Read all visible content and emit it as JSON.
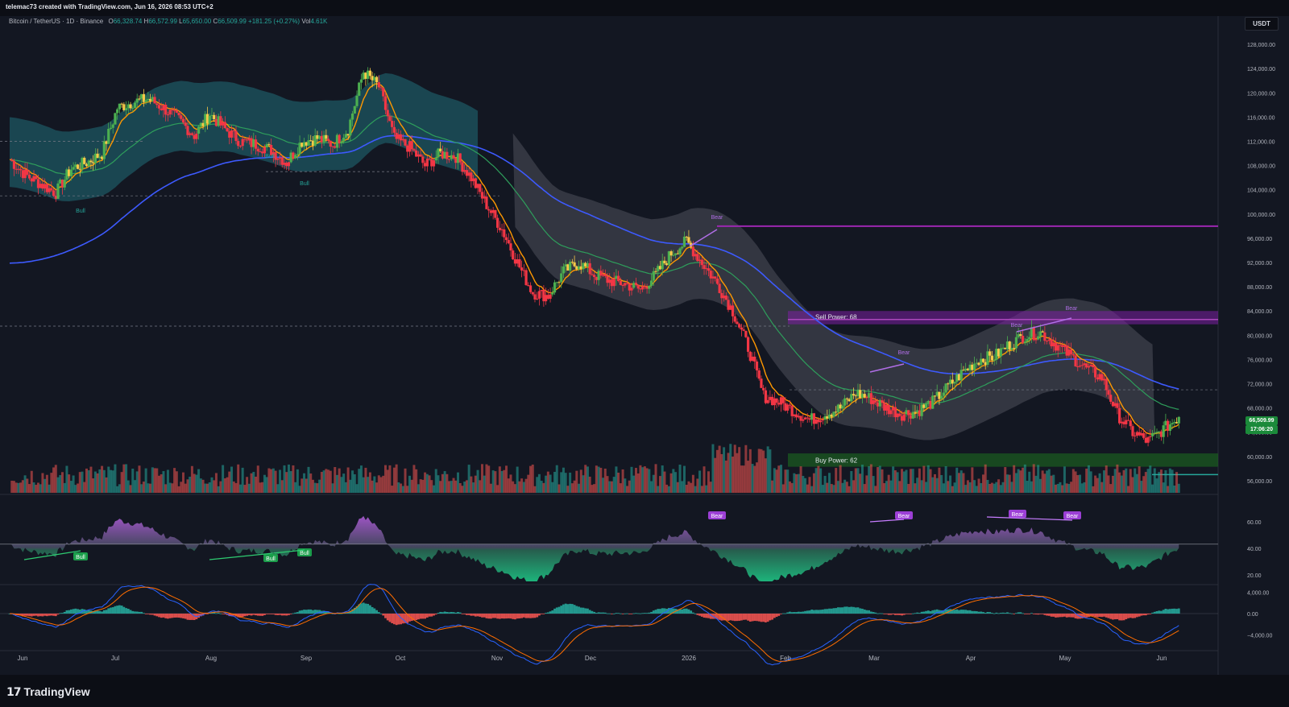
{
  "header": {
    "credit": "telemac73 created with TradingView.com, Jun 16, 2026 08:53 UTC+2",
    "symbol": "Bitcoin / TetherUS · 1D · Binance",
    "open_label": "O",
    "open": "66,328.74",
    "high_label": "H",
    "high": "66,572.99",
    "low_label": "L",
    "low": "65,650.00",
    "close_label": "C",
    "close": "66,509.99",
    "change": "+181.25 (+0.27%)",
    "volume_label": "Vol",
    "volume": "4.61K",
    "currency_button": "USDT"
  },
  "price_axis": {
    "ticks": [
      "128,000.00",
      "124,000.00",
      "120,000.00",
      "116,000.00",
      "112,000.00",
      "108,000.00",
      "104,000.00",
      "100,000.00",
      "96,000.00",
      "92,000.00",
      "88,000.00",
      "84,000.00",
      "80,000.00",
      "76,000.00",
      "72,000.00",
      "68,000.00",
      "64,000.00",
      "60,000.00",
      "56,000.00"
    ],
    "tick_values": [
      128000,
      124000,
      120000,
      116000,
      112000,
      108000,
      104000,
      100000,
      96000,
      92000,
      88000,
      84000,
      80000,
      76000,
      72000,
      68000,
      64000,
      60000,
      56000
    ],
    "last_price": "66,509.99",
    "countdown": "17:06:20"
  },
  "rsi_axis": {
    "ticks": [
      "60.00",
      "40.00",
      "20.00"
    ],
    "tick_values": [
      60,
      40,
      20
    ]
  },
  "macd_axis": {
    "ticks": [
      "4,000.00",
      "0.00",
      "−4,000.00"
    ],
    "tick_values": [
      4000,
      0,
      -4000
    ]
  },
  "time_axis": {
    "labels": [
      "Jun",
      "Jul",
      "Aug",
      "Sep",
      "Oct",
      "Nov",
      "Dec",
      "2026",
      "Feb",
      "Mar",
      "Apr",
      "May",
      "Jun"
    ]
  },
  "annotations": {
    "sell_power": "Sell Power: 68",
    "buy_power": "Buy Power: 62",
    "bull": "Bull",
    "bear": "Bear"
  },
  "footer": {
    "brand": "TradingView",
    "brand_mark": "17"
  },
  "colors": {
    "background": "#131722",
    "up": "#26a69a",
    "down": "#ef5350",
    "bull_candle": "#4caf50",
    "bear_candle": "#f23645",
    "neutral_candle": "#f7c948",
    "ema_fast": "#ff9800",
    "ma_mid": "#2e9e5b",
    "ma_slow": "#3d5afe",
    "sell_zone": "#7b1fa2",
    "buy_zone": "#1b5e20",
    "cloud_bull": "#1f5f6b",
    "cloud_bear": "#3c3f4a",
    "divergence": "#b06ee6"
  },
  "chart_data": {
    "type": "candlestick",
    "symbol": "BTCUSDT",
    "interval": "1D",
    "price_range": [
      54000,
      130000
    ],
    "closes_weekly_approx": [
      109000,
      106500,
      105000,
      103500,
      107500,
      108500,
      110000,
      117500,
      118500,
      119000,
      117500,
      115500,
      113000,
      116500,
      114000,
      112000,
      111500,
      110500,
      108500,
      112000,
      112500,
      111500,
      114000,
      123500,
      121000,
      112500,
      111000,
      108000,
      110000,
      109500,
      106000,
      101500,
      97500,
      92000,
      87000,
      86500,
      90500,
      92000,
      90000,
      89000,
      88500,
      87500,
      90000,
      93500,
      95500,
      92000,
      88500,
      84000,
      78000,
      70000,
      69000,
      67500,
      66000,
      67000,
      68000,
      70500,
      69500,
      68000,
      67000,
      67500,
      69000,
      71500,
      74000,
      76000,
      76500,
      78500,
      80000,
      80500,
      78500,
      76500,
      74500,
      73000,
      67000,
      64000,
      62500,
      64500,
      66509.99
    ],
    "sell_power": 68,
    "buy_power": 62,
    "horizontal_levels": [
      98000,
      84000,
      82000,
      60500,
      58500
    ],
    "rsi_range": [
      15,
      72
    ],
    "macd_range": [
      -6000,
      4500
    ]
  }
}
